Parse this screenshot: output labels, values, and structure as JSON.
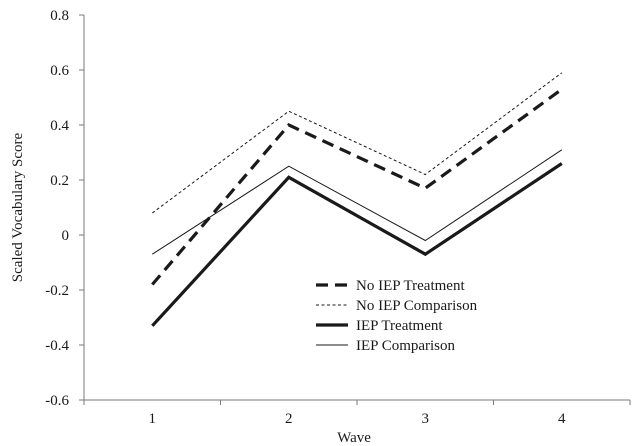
{
  "chart_data": {
    "type": "line",
    "title": "",
    "xlabel": "Wave",
    "ylabel": "Scaled Vocabulary Score",
    "x": [
      1,
      2,
      3,
      4
    ],
    "categories": [
      "1",
      "2",
      "3",
      "4"
    ],
    "ylim": [
      -0.6,
      0.8
    ],
    "yticks": [
      -0.6,
      -0.4,
      -0.2,
      0,
      0.2,
      0.4,
      0.6,
      0.8
    ],
    "ytick_labels": [
      "-0.6",
      "-0.4",
      "-0.2",
      "0",
      "0.2",
      "0.4",
      "0.6",
      "0.8"
    ],
    "grid": false,
    "legend_position": "lower-center",
    "series": [
      {
        "name": "No IEP Treatment",
        "values": [
          -0.18,
          0.4,
          0.17,
          0.53
        ],
        "style": "dashed-thick",
        "color": "#1a1a1a"
      },
      {
        "name": "No IEP Comparison",
        "values": [
          0.08,
          0.45,
          0.22,
          0.59
        ],
        "style": "dashed-thin",
        "color": "#1a1a1a"
      },
      {
        "name": "IEP Treatment",
        "values": [
          -0.33,
          0.21,
          -0.07,
          0.26
        ],
        "style": "solid-thick",
        "color": "#1a1a1a"
      },
      {
        "name": "IEP Comparison",
        "values": [
          -0.07,
          0.25,
          -0.02,
          0.31
        ],
        "style": "solid-thin",
        "color": "#1a1a1a"
      }
    ]
  }
}
